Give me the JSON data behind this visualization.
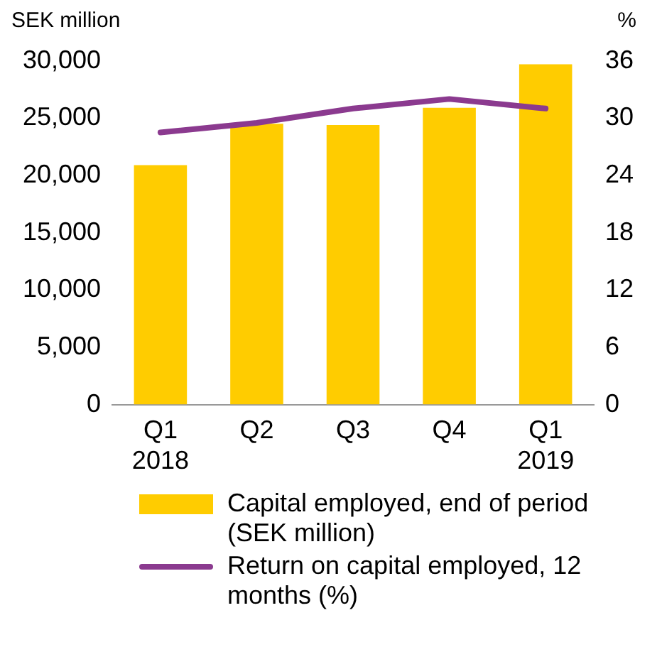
{
  "chart_data": {
    "type": "bar",
    "ylabel": "SEK million",
    "y2label": "%",
    "categories": [
      "Q1 2018",
      "Q2",
      "Q3",
      "Q4",
      "Q1 2019"
    ],
    "series": [
      {
        "name": "Capital employed, end of period (SEK million)",
        "color": "#ffcc00",
        "values": [
          20900,
          24500,
          24400,
          25900,
          29700
        ]
      },
      {
        "name": "Return on capital employed, 12 months (%)",
        "type": "line",
        "axis": "y2",
        "color": "#8b3a8f",
        "values": [
          28.5,
          29.5,
          31,
          32,
          31
        ],
        "marker": "none"
      }
    ],
    "ylim": [
      0,
      30000
    ],
    "yticks": [
      {
        "value": 0,
        "label": "0"
      },
      {
        "value": 5000,
        "label": "5,000"
      },
      {
        "value": 10000,
        "label": "10,000"
      },
      {
        "value": 15000,
        "label": "15,000"
      },
      {
        "value": 20000,
        "label": "20,000"
      },
      {
        "value": 25000,
        "label": "25,000"
      },
      {
        "value": 30000,
        "label": "30,000"
      }
    ],
    "y2lim": [
      0,
      36
    ],
    "y2ticks": [
      0,
      6,
      12,
      18,
      24,
      30,
      36
    ],
    "grid": false,
    "legend": "bottom"
  }
}
